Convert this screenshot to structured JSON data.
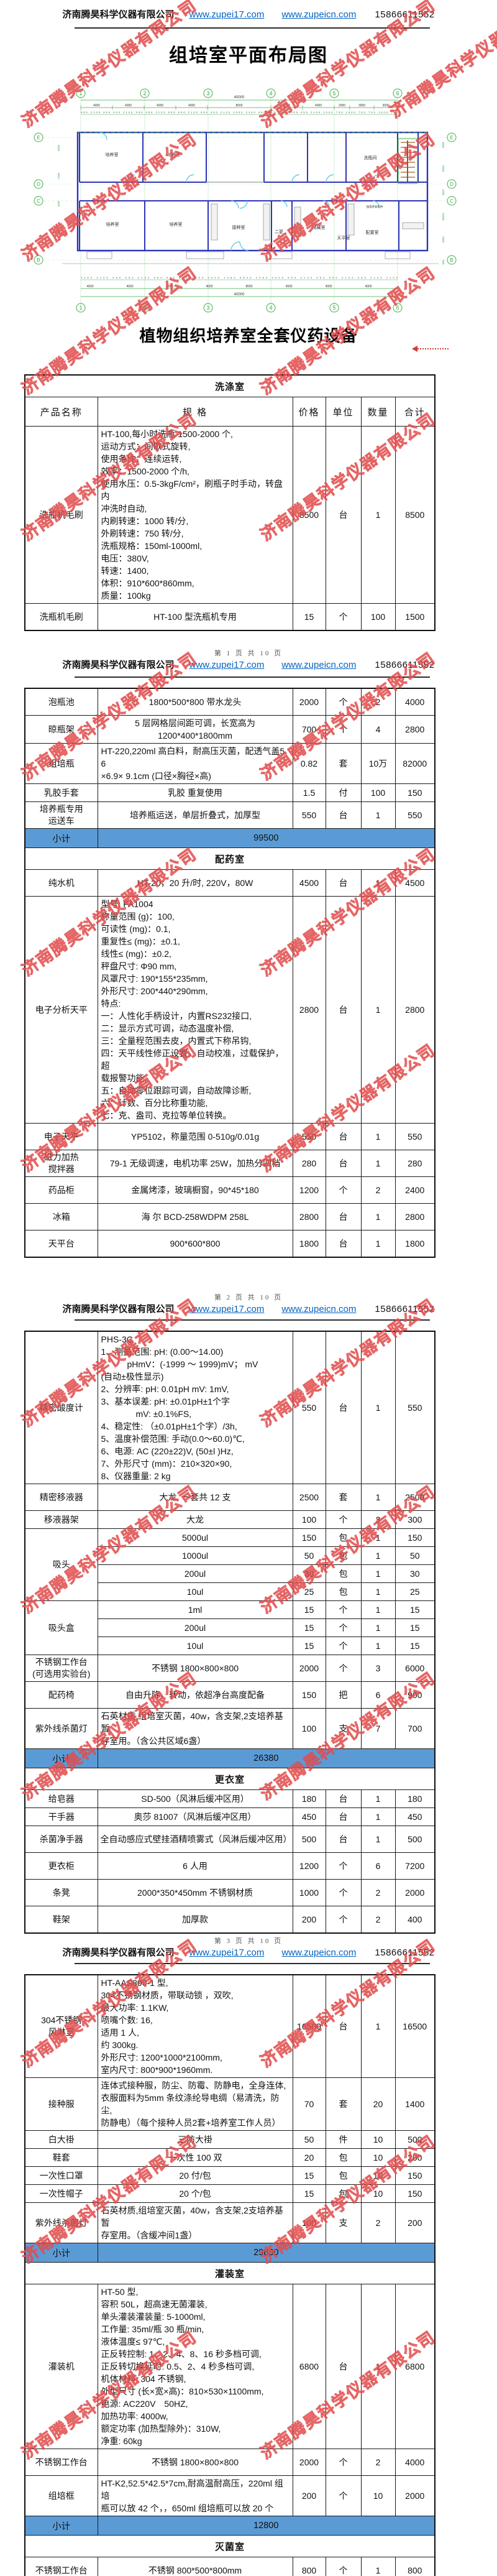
{
  "watermark": {
    "text": "济南腾昊科学仪器有限公司",
    "color": "#E04848"
  },
  "page_header": {
    "company": "济南腾昊科学仪器有限公司",
    "url1": "www.zupei17.com",
    "url2": "www.zupeicn.com",
    "phone": "15866611552"
  },
  "titles": {
    "floor_plan": "组培室平面布局图",
    "equipment": "植物组织培养室全套仪药设备"
  },
  "page_footers": [
    "第 1 页 共 10 页",
    "第 2 页 共 10 页",
    "第 3 页 共 10 页"
  ],
  "floor_plan": {
    "grid_cols": [
      "1",
      "2",
      "3",
      "4",
      "5",
      "6"
    ],
    "grid_rows": [
      "E",
      "D",
      "C",
      "B"
    ],
    "total_dim": "40000",
    "dims_top_main": [
      "4000",
      "4000",
      "4000",
      "4000",
      "8000",
      "4000",
      "4000",
      "2000",
      "3000",
      "3000"
    ],
    "dims_top_small": "950 2100 950 950 2100 950 950 2100 950 950 2100 950 950 2100 1900 2100 950 950 2100 950 950 2100 2000 750 1500 750 750 1500 750",
    "dims_bottom_main": [
      "4000",
      "4000",
      "4000",
      "4000",
      "8000",
      "4000",
      "4000",
      "4000"
    ],
    "dims_bottom_small": "1100 2100 950 950 2100 950 950 2100 950 4000 1080 5840 1080 4000 950 2100 950 950 2100 950 2100 1100",
    "dims_left": [
      "6500",
      "2200",
      "1500",
      "7500"
    ],
    "dims_right": [
      "3600",
      "2500",
      "2200",
      "16400",
      "2500",
      "600"
    ],
    "rooms": [
      "培养室",
      "培养室",
      "洗瓶间",
      "培养室",
      "培养室",
      "接种室",
      "二更",
      "储藏室",
      "天平室",
      "配置室",
      "强电井弱电井"
    ]
  },
  "table": {
    "columns": [
      "产品名称",
      "规 格",
      "价格",
      "单位",
      "数量",
      "合计"
    ],
    "subtotal_label": "小计",
    "segments": [
      {
        "rows": [
          {
            "t": "sec",
            "label": "洗涤室"
          },
          {
            "t": "cols"
          },
          {
            "t": "item",
            "big": 1,
            "align": "l",
            "name": [
              "洗瓶机毛刷"
            ],
            "spec": [
              "HT-100,每小时洗瓶 1500-2000 个,",
              "运动方式：间歇式旋转,",
              "使用条件：连续运转,",
              "效率：1500-2000 个/h,",
              "使用水压：0.5-3kgF/cm²，刷瓶子时手动，转盘内",
              "冲洗时自动,",
              "内刷转速：1000 转/分,",
              "外刷转速：750 转/分,",
              "洗瓶规格：150ml-1000ml,",
              "电压：380V,",
              "转速：1400,",
              "体积：910*600*860mm,",
              "质量：100kg"
            ],
            "price": "8500",
            "unit": "台",
            "qty": "1",
            "total": "8500"
          },
          {
            "t": "item",
            "name": [
              "洗瓶机毛刷"
            ],
            "spec": [
              "HT-100 型洗瓶机专用"
            ],
            "price": "15",
            "unit": "个",
            "qty": "100",
            "total": "1500"
          }
        ]
      },
      {
        "rows": [
          {
            "t": "item",
            "name": [
              "泡瓶池"
            ],
            "spec": [
              "1800*500*800 带水龙头"
            ],
            "price": "2000",
            "unit": "个",
            "qty": "2",
            "total": "4000"
          },
          {
            "t": "item",
            "name": [
              "晾瓶架"
            ],
            "spec": [
              "5 层网格层间距可调，长宽高为",
              "1200*400*1800mm"
            ],
            "price": "700",
            "unit": "个",
            "qty": "4",
            "total": "2800"
          },
          {
            "t": "item",
            "align": "l",
            "name": [
              "组培瓶"
            ],
            "spec": [
              "HT-220,220ml 高白料，耐高压灭菌，配透气盖5.6",
              "×6.9× 9.1cm (口径×胸径×高)"
            ],
            "price": "0.82",
            "unit": "套",
            "qty": "10万",
            "total": "82000"
          },
          {
            "t": "item",
            "s": 1,
            "name": [
              "乳胶手套"
            ],
            "spec": [
              "乳胶 重复使用"
            ],
            "price": "1.5",
            "unit": "付",
            "qty": "100",
            "total": "150"
          },
          {
            "t": "item",
            "name": [
              "培养瓶专用",
              "运送车"
            ],
            "spec": [
              "培养瓶运送，单层折叠式，加厚型"
            ],
            "price": "550",
            "unit": "台",
            "qty": "1",
            "total": "550"
          },
          {
            "t": "sub",
            "value": "99500"
          },
          {
            "t": "sec",
            "label": "配药室"
          },
          {
            "t": "item",
            "name": [
              "纯水机"
            ],
            "spec": [
              "HT-20，20 升/时, 220V，80W"
            ],
            "price": "4500",
            "unit": "台",
            "qty": "1",
            "total": "4500"
          },
          {
            "t": "item",
            "big": 1,
            "align": "l",
            "name": [
              "电子分析天平"
            ],
            "spec": [
              "型号: FA1004",
              "称量范围 (g)：100,",
              "可读性 (mg)：0.1,",
              "重复性≤ (mg)：±0.1,",
              "线性≤ (mg)：±0.2,",
              "秤盘尺寸: Φ90 mm,",
              "风罩尺寸: 190*155*235mm,",
              "外形尺寸: 200*440*290mm,",
              "特点:",
              "一：人性化手柄设计，内置RS232接口,",
              "二：显示方式可调，动态温度补偿,",
              "三：全量程范围去皮，内置式下称吊钩,",
              "四：天平线性修正设置，自动校准，过载保护，超",
              "载报警功能,",
              "五：自动零位跟踪可调，自动故障诊断,",
              "六：计数、百分比称重功能,",
              "七：克、盎司、克拉等单位转换。"
            ],
            "price": "2800",
            "unit": "台",
            "qty": "1",
            "total": "2800"
          },
          {
            "t": "item",
            "name": [
              "电子天平"
            ],
            "spec": [
              "YP5102，称量范围 0-510g/0.01g"
            ],
            "price": "550",
            "unit": "台",
            "qty": "1",
            "total": "550"
          },
          {
            "t": "item",
            "name": [
              "磁力加热",
              "搅拌器"
            ],
            "spec": [
              "79-1 无级调速，电机功率 25W，加热分四档"
            ],
            "price": "280",
            "unit": "台",
            "qty": "1",
            "total": "280"
          },
          {
            "t": "item",
            "name": [
              "药品柜"
            ],
            "spec": [
              "金属烤漆，玻璃橱窗，90*45*180"
            ],
            "price": "1200",
            "unit": "个",
            "qty": "2",
            "total": "2400"
          },
          {
            "t": "item",
            "name": [
              "冰箱"
            ],
            "spec": [
              "海 尔 BCD-258WDPM 258L"
            ],
            "price": "2800",
            "unit": "台",
            "qty": "1",
            "total": "2800"
          },
          {
            "t": "item",
            "name": [
              "天平台"
            ],
            "spec": [
              "900*600*800"
            ],
            "price": "1800",
            "unit": "台",
            "qty": "1",
            "total": "1800"
          }
        ]
      },
      {
        "rows": [
          {
            "t": "item",
            "big": 1,
            "align": "l",
            "name": [
              "精密酸度计"
            ],
            "spec": [
              "PHS-3C",
              "1、测量范围: pH: (0.00～14.00)",
              "　　　pHmV：(-1999 ～ 1999)mV； mV",
              "(自动±极性显示)",
              "2、分辨率: pH: 0.01pH  mV: 1mV,",
              "3、基本误差: pH: ±0.01pH±1个字",
              "　　　　mV: ±0.1%FS,",
              "4、稳定性: （±0.01pH±1个字）/3h,",
              "5、温度补偿范围: 手动(0.0～60.0)℃,",
              "6、电源: AC (220±22)V, (50±l )Hz,",
              "7、外形尺寸 (mm)：210×320×90,",
              "8、仪器重量: 2 kg"
            ],
            "price": "550",
            "unit": "台",
            "qty": "1",
            "total": "550"
          },
          {
            "t": "item",
            "name": [
              "精密移液器"
            ],
            "spec": [
              "大龙, 一套共 12 支"
            ],
            "price": "2500",
            "unit": "套",
            "qty": "1",
            "total": "2500"
          },
          {
            "t": "item",
            "s": 1,
            "name": [
              "移液器架"
            ],
            "spec": [
              "大龙"
            ],
            "price": "100",
            "unit": "个",
            "qty": "3",
            "total": "300"
          },
          {
            "t": "group",
            "name": [
              "吸头"
            ],
            "rows": [
              [
                "5000ul",
                "150",
                "包",
                "1",
                "150"
              ],
              [
                "1000ul",
                "50",
                "包",
                "1",
                "50"
              ],
              [
                "200ul",
                "30",
                "包",
                "1",
                "30"
              ],
              [
                "10ul",
                "25",
                "包",
                "1",
                "25"
              ]
            ]
          },
          {
            "t": "group",
            "name": [
              "吸头盒"
            ],
            "rows": [
              [
                "1ml",
                "15",
                "个",
                "1",
                "15"
              ],
              [
                "200ul",
                "15",
                "个",
                "1",
                "15"
              ],
              [
                "10ul",
                "15",
                "个",
                "1",
                "15"
              ]
            ]
          },
          {
            "t": "item",
            "name": [
              "不锈钢工作台",
              "(可选用实验台)"
            ],
            "spec": [
              "不锈钢 1800×800×800"
            ],
            "price": "2000",
            "unit": "个",
            "qty": "3",
            "total": "6000"
          },
          {
            "t": "item",
            "name": [
              "配药椅"
            ],
            "spec": [
              "自由升降、转动，依超净台高度配备"
            ],
            "price": "150",
            "unit": "把",
            "qty": "6",
            "total": "900"
          },
          {
            "t": "item",
            "align": "l",
            "name": [
              "紫外线杀菌灯"
            ],
            "spec": [
              "石英材质,组培室灭菌，40w，含支架,2支培养基暂",
              "存室用。（含公共区域6盏）"
            ],
            "price": "100",
            "unit": "支",
            "qty": "7",
            "total": "700"
          },
          {
            "t": "sub",
            "value": "26380"
          },
          {
            "t": "sec",
            "label": "更衣室"
          },
          {
            "t": "item",
            "s": 1,
            "name": [
              "给皂器"
            ],
            "spec": [
              "SD-500（风淋后缓冲区用）"
            ],
            "price": "180",
            "unit": "台",
            "qty": "1",
            "total": "180"
          },
          {
            "t": "item",
            "s": 1,
            "name": [
              "干手器"
            ],
            "spec": [
              "奥莎 81007（风淋后缓冲区用）"
            ],
            "price": "450",
            "unit": "台",
            "qty": "1",
            "total": "450"
          },
          {
            "t": "item",
            "name": [
              "杀菌净手器"
            ],
            "spec": [
              "全自动感应式壁挂酒精喷雾式（风淋后缓冲区用）"
            ],
            "price": "500",
            "unit": "台",
            "qty": "1",
            "total": "500"
          },
          {
            "t": "item",
            "name": [
              "更衣柜"
            ],
            "spec": [
              "6 人用"
            ],
            "price": "1200",
            "unit": "个",
            "qty": "6",
            "total": "7200"
          },
          {
            "t": "item",
            "name": [
              "条凳"
            ],
            "spec": [
              "2000*350*450mm 不锈钢材质"
            ],
            "price": "1000",
            "unit": "个",
            "qty": "2",
            "total": "2000"
          },
          {
            "t": "item",
            "name": [
              "鞋架"
            ],
            "spec": [
              "加厚款"
            ],
            "price": "200",
            "unit": "个",
            "qty": "2",
            "total": "400"
          }
        ]
      },
      {
        "rows": [
          {
            "t": "item",
            "big": 1,
            "align": "l",
            "name": [
              "304不锈钢",
              "风淋室"
            ],
            "spec": [
              "HT-AAS800-1 型,",
              "304不锈钢材质，带联动锁 ，双吹,",
              "最大功率: 1.1KW,",
              "喷嘴个数: 16,",
              "适用 1 人,",
              "约 300kg.",
              "外形尺寸: 1200*1000*2100mm,",
              "室内尺寸: 800*900*1960mm."
            ],
            "price": "16500",
            "unit": "台",
            "qty": "1",
            "total": "16500"
          },
          {
            "t": "item",
            "align": "l",
            "name": [
              "接种服"
            ],
            "spec": [
              "连体式接种服，防尘、防霉、防静电，全身连体,",
              "衣服面料为5mm 条纹涤纶导电绸（易清洗，防尘,",
              "防静电）（每个接种人员2套+培养室工作人员）"
            ],
            "price": "70",
            "unit": "套",
            "qty": "20",
            "total": "1400"
          },
          {
            "t": "item",
            "s": 1,
            "name": [
              "白大褂"
            ],
            "spec": [
              "三防大褂"
            ],
            "price": "50",
            "unit": "件",
            "qty": "10",
            "total": "500"
          },
          {
            "t": "item",
            "s": 1,
            "name": [
              "鞋套"
            ],
            "spec": [
              "一次性 100 双"
            ],
            "price": "20",
            "unit": "包",
            "qty": "10",
            "total": "200"
          },
          {
            "t": "item",
            "s": 1,
            "name": [
              "一次性口罩"
            ],
            "spec": [
              "20 付/包"
            ],
            "price": "15",
            "unit": "包",
            "qty": "10",
            "total": "150"
          },
          {
            "t": "item",
            "s": 1,
            "name": [
              "一次性帽子"
            ],
            "spec": [
              "20 个/包"
            ],
            "price": "15",
            "unit": "包",
            "qty": "10",
            "total": "150"
          },
          {
            "t": "item",
            "align": "l",
            "name": [
              "紫外线杀菌灯"
            ],
            "spec": [
              "石英材质,组培室灭菌，40w，含支架,2支培养基暂",
              "存室用。（含缓冲间1盏）"
            ],
            "price": "100",
            "unit": "支",
            "qty": "2",
            "total": "200"
          },
          {
            "t": "sub",
            "value": "29830"
          },
          {
            "t": "sec",
            "label": "灌装室"
          },
          {
            "t": "item",
            "big": 1,
            "align": "l",
            "name": [
              "灌装机"
            ],
            "spec": [
              "HT-50 型,",
              "容积 50L，超高速无菌灌装,",
              "单头灌装灌装量: 5-1000ml,",
              "工作量: 35ml/瓶 30 瓶/min,",
              "液体温度≤ 97℃,",
              "正反转控制: 1、2、4、8、16 秒多档可调,",
              "正反转切换延时:  0.5、2、4 秒多档可调,",
              "机体材料: 304 不锈钢,",
              "外型尺寸 (长×宽×高)：810×530×1100mm,",
              "电源: AC220V　50HZ,",
              "加热功率: 4000w,",
              "额定功率 (加热型除外)：310W,",
              "净重: 60kg"
            ],
            "price": "6800",
            "unit": "台",
            "qty": "1",
            "total": "6800"
          },
          {
            "t": "item",
            "name": [
              "不锈钢工作台"
            ],
            "spec": [
              "不锈钢 1800×800×800"
            ],
            "price": "2000",
            "unit": "个",
            "qty": "2",
            "total": "4000"
          },
          {
            "t": "item",
            "align": "l",
            "name": [
              "组培框"
            ],
            "spec": [
              "HT-K2,52.5*42.5*7cm,耐高温耐高压，220ml 组培",
              "瓶可以放 42 个，，650ml 组培瓶可以放 20 个"
            ],
            "price": "200",
            "unit": "个",
            "qty": "10",
            "total": "2000"
          },
          {
            "t": "sub",
            "value": "12800"
          },
          {
            "t": "sec",
            "label": "灭菌室"
          },
          {
            "t": "item",
            "name": [
              "不锈钢工作台"
            ],
            "spec": [
              "不锈钢 800*500*800mm"
            ],
            "price": "800",
            "unit": "个",
            "qty": "1",
            "total": "800"
          }
        ]
      }
    ]
  }
}
